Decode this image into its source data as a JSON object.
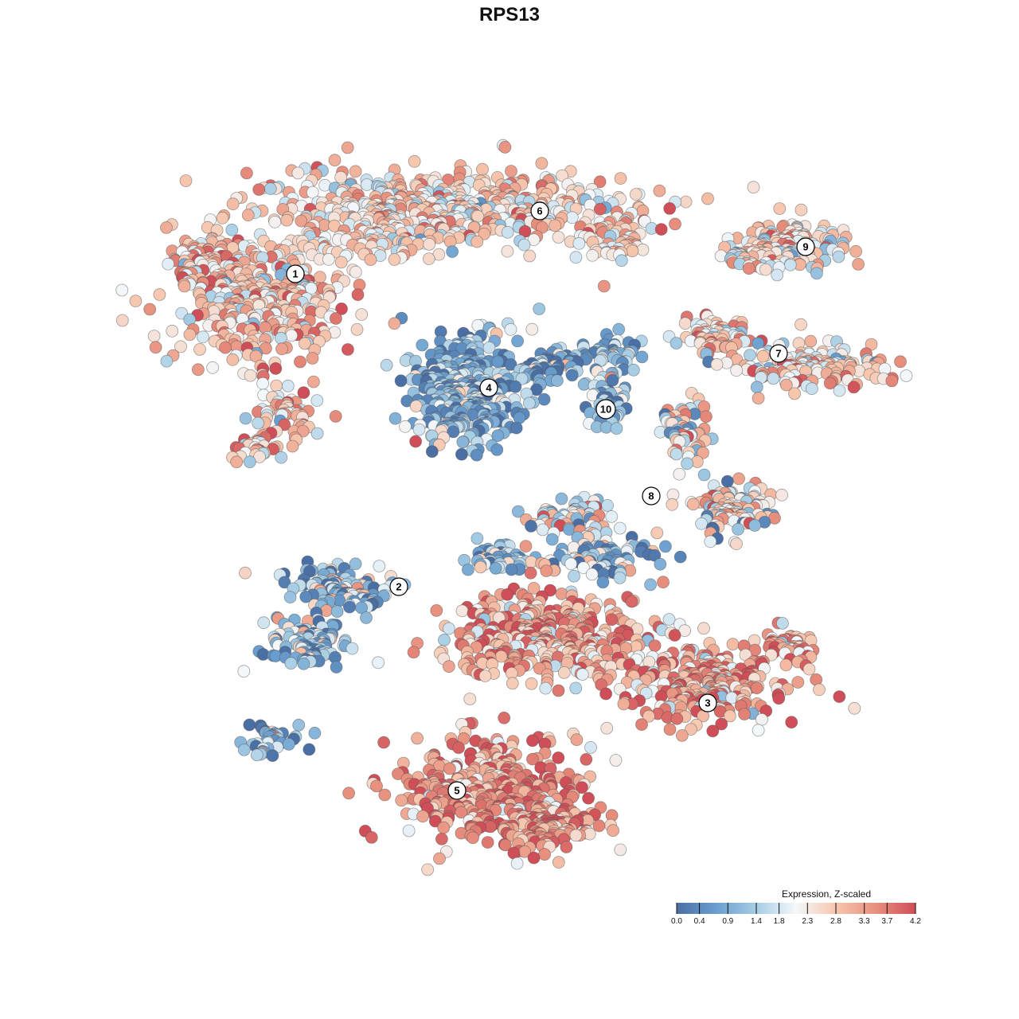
{
  "chart_data": {
    "type": "scatter",
    "title": "RPS13",
    "xlabel": "",
    "ylabel": "",
    "grid": false,
    "legend": {
      "title": "Expression, Z-scaled",
      "placement": "bottom-right",
      "ticks": [
        "0.0",
        "0.4",
        "0.9",
        "1.4",
        "1.8",
        "2.3",
        "2.8",
        "3.3",
        "3.7",
        "4.2"
      ],
      "range": [
        0.0,
        4.2
      ]
    },
    "colorscale": [
      "#4a6fa5",
      "#6a9fcf",
      "#a6cde4",
      "#f4f8fb",
      "#f6c6ad",
      "#e8907e",
      "#cf4e57"
    ],
    "clusters": [
      {
        "label": "1",
        "x": 0.371,
        "y": 0.344,
        "mean_expression": 2.8
      },
      {
        "label": "2",
        "x": 0.501,
        "y": 0.737,
        "mean_expression": 1.2
      },
      {
        "label": "3",
        "x": 0.889,
        "y": 0.883,
        "mean_expression": 3.2
      },
      {
        "label": "4",
        "x": 0.614,
        "y": 0.487,
        "mean_expression": 1.0
      },
      {
        "label": "5",
        "x": 0.574,
        "y": 0.993,
        "mean_expression": 3.5
      },
      {
        "label": "6",
        "x": 0.678,
        "y": 0.265,
        "mean_expression": 2.6
      },
      {
        "label": "7",
        "x": 0.978,
        "y": 0.444,
        "mean_expression": 2.6
      },
      {
        "label": "8",
        "x": 0.818,
        "y": 0.623,
        "mean_expression": 2.2
      },
      {
        "label": "9",
        "x": 1.012,
        "y": 0.31,
        "mean_expression": 2.5
      },
      {
        "label": "10",
        "x": 0.761,
        "y": 0.514,
        "mean_expression": 1.1
      }
    ]
  }
}
